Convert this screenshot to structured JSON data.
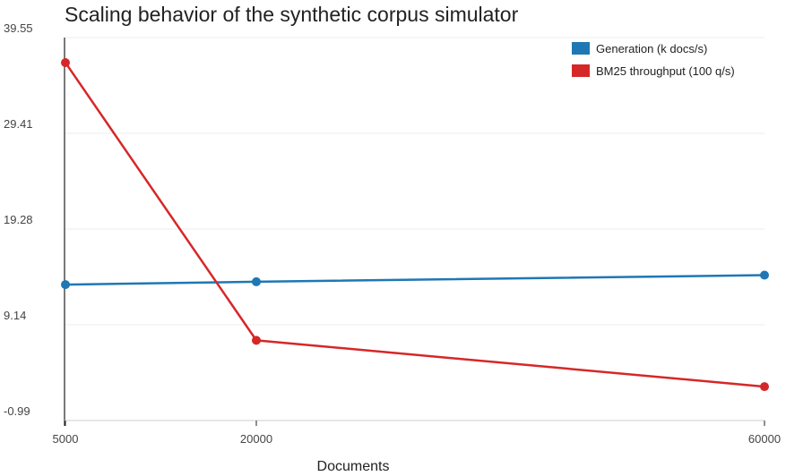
{
  "chart_data": {
    "type": "line",
    "title": "Scaling behavior of the synthetic corpus simulator",
    "xlabel": "Documents",
    "ylabel": "",
    "x": [
      5000,
      20000,
      60000
    ],
    "xticks": [
      "5000",
      "20000",
      "60000"
    ],
    "yticks": [
      "39.55",
      "29.41",
      "19.28",
      "9.14",
      "-0.99"
    ],
    "ylim": [
      -0.99,
      39.55
    ],
    "grid": "horizontal",
    "legend_position": "top-right",
    "series": [
      {
        "name": "Generation (k docs/s)",
        "color": "#1f77b4",
        "values": [
          13.4,
          13.7,
          14.4
        ]
      },
      {
        "name": "BM25 throughput (100 q/s)",
        "color": "#d62728",
        "values": [
          36.9,
          7.5,
          2.6
        ]
      }
    ]
  }
}
